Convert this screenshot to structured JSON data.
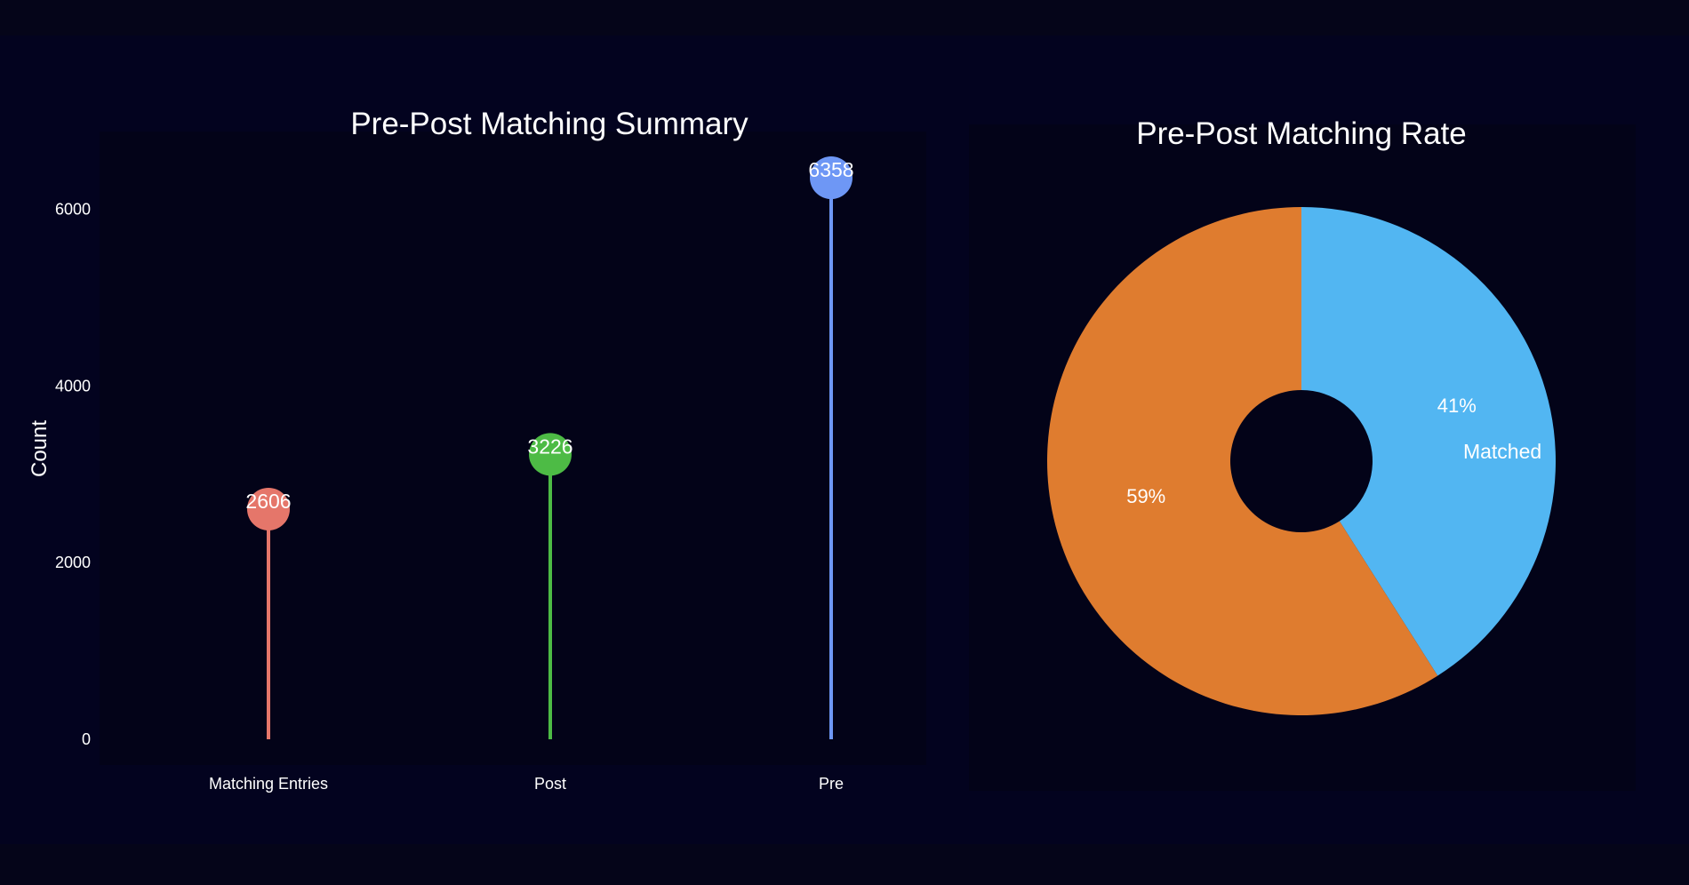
{
  "chart_data": [
    {
      "type": "lollipop",
      "title": "Pre-Post Matching Summary",
      "xlabel": "",
      "ylabel": "Count",
      "ylim": [
        0,
        6900
      ],
      "yticks": [
        0,
        2000,
        4000,
        6000
      ],
      "categories": [
        "Matching Entries",
        "Post",
        "Pre"
      ],
      "values": [
        2606,
        3226,
        6358
      ],
      "data_labels": [
        "2606",
        "3226",
        "6358"
      ],
      "colors": [
        "#e5766a",
        "#4dbb45",
        "#6e97f5"
      ],
      "grid": false
    },
    {
      "type": "pie",
      "subtype": "donut",
      "title": "Pre-Post Matching Rate",
      "slices": [
        {
          "label": "Matched",
          "value": 41,
          "percent_label": "41%",
          "color": "#52b6f2"
        },
        {
          "label": "",
          "value": 59,
          "percent_label": "59%",
          "color": "#df7c2f"
        }
      ]
    }
  ],
  "colors": {
    "background": "#050519",
    "panel": "#03031f",
    "text": "#ffffff"
  }
}
